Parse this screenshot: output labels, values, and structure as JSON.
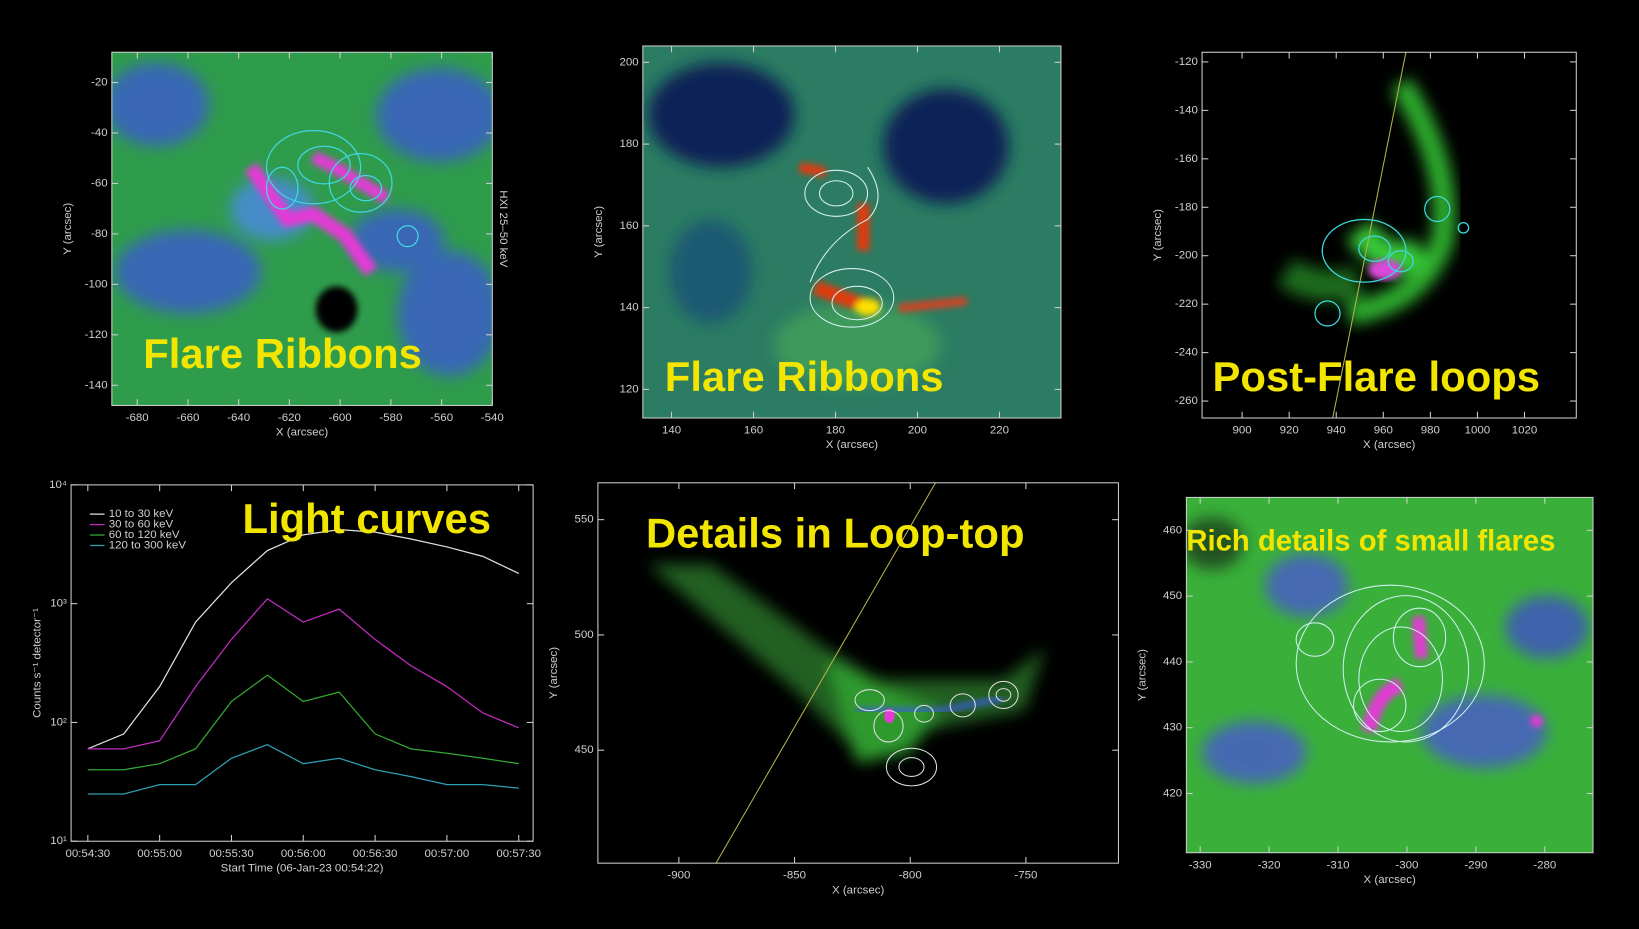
{
  "chart_data": [
    {
      "type": "image",
      "title": "Flare Ribbons",
      "xlabel": "X (arcsec)",
      "ylabel": "Y (arcsec)",
      "y2label": "HXI 25–50 keV",
      "xlim": [
        -690,
        -540
      ],
      "ylim": [
        -148,
        -8
      ],
      "xticks": [
        -680,
        -660,
        -640,
        -620,
        -600,
        -580,
        -560,
        -540
      ],
      "yticks": [
        -20,
        -40,
        -60,
        -80,
        -100,
        -120,
        -140
      ]
    },
    {
      "type": "image",
      "title": "Flare Ribbons",
      "xlabel": "X (arcsec)",
      "ylabel": "Y (arcsec)",
      "xlim": [
        133,
        235
      ],
      "ylim": [
        113,
        204
      ],
      "xticks": [
        140,
        160,
        180,
        200,
        220
      ],
      "yticks": [
        120,
        140,
        160,
        180,
        200
      ]
    },
    {
      "type": "image",
      "title": "Post-Flare loops",
      "xlabel": "X (arcsec)",
      "ylabel": "Y (arcsec)",
      "xlim": [
        883,
        1042
      ],
      "ylim": [
        -267,
        -116
      ],
      "xticks": [
        900,
        920,
        940,
        960,
        980,
        1000,
        1020
      ],
      "yticks": [
        -120,
        -140,
        -160,
        -180,
        -200,
        -220,
        -240,
        -260
      ]
    },
    {
      "type": "line",
      "title": "Light curves",
      "xlabel": "Start Time (06-Jan-23 00:54:22)",
      "ylabel": "Counts s⁻¹ detector⁻¹",
      "log_scale": true,
      "legend": "upper left",
      "xlim": [
        "00:54:23",
        "00:57:36"
      ],
      "ylim": [
        10,
        10000
      ],
      "xticks": [
        "00:54:30",
        "00:55:00",
        "00:55:30",
        "00:56:00",
        "00:56:30",
        "00:57:00",
        "00:57:30"
      ],
      "yticks": [
        {
          "value": 10,
          "label": "10¹"
        },
        {
          "value": 100,
          "label": "10²"
        },
        {
          "value": 1000,
          "label": "10³"
        },
        {
          "value": 10000,
          "label": "10⁴"
        }
      ],
      "x": [
        "00:54:30",
        "00:54:45",
        "00:55:00",
        "00:55:15",
        "00:55:30",
        "00:55:45",
        "00:56:00",
        "00:56:15",
        "00:56:30",
        "00:56:45",
        "00:57:00",
        "00:57:15",
        "00:57:30"
      ],
      "series": [
        {
          "name": "10 to 30 keV",
          "color": "#e0e0e0",
          "values": [
            60,
            80,
            200,
            700,
            1500,
            2800,
            3800,
            4200,
            4000,
            3500,
            3000,
            2500,
            1800
          ]
        },
        {
          "name": "30 to 60 keV",
          "color": "#c22cc2",
          "values": [
            60,
            60,
            70,
            200,
            500,
            1100,
            700,
            900,
            500,
            300,
            200,
            120,
            90
          ]
        },
        {
          "name": "60 to 120 keV",
          "color": "#33a833",
          "values": [
            40,
            40,
            45,
            60,
            150,
            250,
            150,
            180,
            80,
            60,
            55,
            50,
            45
          ]
        },
        {
          "name": "120 to 300 keV",
          "color": "#2fa0b4",
          "values": [
            25,
            25,
            30,
            30,
            50,
            65,
            45,
            50,
            40,
            35,
            30,
            30,
            28
          ]
        }
      ]
    },
    {
      "type": "image",
      "title": "Details in Loop-top",
      "xlabel": "X (arcsec)",
      "ylabel": "Y (arcsec)",
      "xlim": [
        -935,
        -710
      ],
      "ylim": [
        401,
        566
      ],
      "xticks": [
        -900,
        -850,
        -800,
        -750
      ],
      "yticks": [
        450,
        500,
        550
      ]
    },
    {
      "type": "image",
      "title": "Rich details of small flares",
      "xlabel": "X (arcsec)",
      "ylabel": "Y (arcsec)",
      "xlim": [
        -332,
        -273
      ],
      "ylim": [
        411,
        465
      ],
      "xticks": [
        -330,
        -320,
        -310,
        -300,
        -290,
        -280
      ],
      "yticks": [
        420,
        430,
        440,
        450,
        460
      ]
    }
  ]
}
